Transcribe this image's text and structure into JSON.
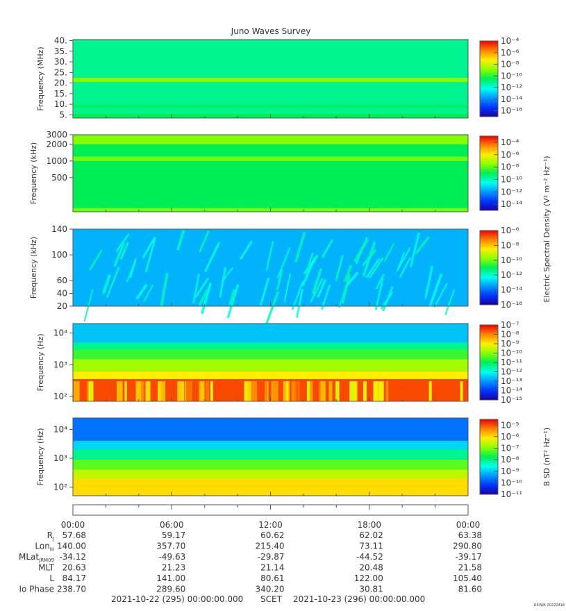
{
  "chart_data": {
    "type": "heatmap",
    "title": "Juno Waves Survey",
    "footer_left": "2021-10-22 (295) 00:00:00.000",
    "footer_center": "SCET",
    "footer_right": "2021-10-23 (296) 00:00:00.000",
    "watermark": "UIOWA 20220418",
    "colorbar_label_upper": "Electric Spectral Density (V² m⁻² Hz⁻¹)",
    "colorbar_label_lower": "B SD (nT² Hz⁻¹)",
    "panels": [
      {
        "ylabel": "Frequency (MHz)",
        "yscale": "linear",
        "ylim": [
          3.5,
          40.5
        ],
        "yticks": [
          {
            "v": 40,
            "t": "40."
          },
          {
            "v": 35,
            "t": "35."
          },
          {
            "v": 30,
            "t": "30."
          },
          {
            "v": 25,
            "t": "25."
          },
          {
            "v": 20,
            "t": "20."
          },
          {
            "v": 15,
            "t": "15."
          },
          {
            "v": 10,
            "t": "10."
          },
          {
            "v": 5,
            "t": "5."
          }
        ],
        "colorbar_ticks": [
          {
            "v": -4,
            "t": "10⁻⁴"
          },
          {
            "v": -6,
            "t": "10⁻⁶"
          },
          {
            "v": -8,
            "t": "10⁻⁸"
          },
          {
            "v": -10,
            "t": "10⁻¹⁰"
          },
          {
            "v": -12,
            "t": "10⁻¹²"
          },
          {
            "v": -14,
            "t": "10⁻¹⁴"
          },
          {
            "v": -16,
            "t": "10⁻¹⁶"
          }
        ],
        "colorbar_range": [
          -17,
          -4
        ],
        "background_level": 0.45,
        "bands": [
          {
            "f_from": 3.5,
            "f_to": 5.5,
            "level": 0.5
          },
          {
            "f_from": 20.5,
            "f_to": 22.5,
            "level": 0.62
          },
          {
            "f_from": 8.5,
            "f_to": 9.5,
            "level": 0.5
          }
        ]
      },
      {
        "ylabel": "Frequency (kHz)",
        "yscale": "log",
        "ylim": [
          120,
          3000
        ],
        "yticks": [
          {
            "v": 3000,
            "t": "3000"
          },
          {
            "v": 2000,
            "t": "2000"
          },
          {
            "v": 1000,
            "t": "1000"
          },
          {
            "v": 500,
            "t": "500"
          }
        ],
        "colorbar_ticks": [
          {
            "v": -4,
            "t": "10⁻⁴"
          },
          {
            "v": -6,
            "t": "10⁻⁶"
          },
          {
            "v": -8,
            "t": "10⁻⁸"
          },
          {
            "v": -10,
            "t": "10⁻¹⁰"
          },
          {
            "v": -12,
            "t": "10⁻¹²"
          },
          {
            "v": -14,
            "t": "10⁻¹⁴"
          }
        ],
        "colorbar_range": [
          -15,
          -3
        ],
        "background_level": 0.5,
        "bands": [
          {
            "f_from": 2000,
            "f_to": 2900,
            "level": 0.62
          },
          {
            "f_from": 1000,
            "f_to": 1200,
            "level": 0.6
          },
          {
            "f_from": 120,
            "f_to": 140,
            "level": 0.6
          }
        ]
      },
      {
        "ylabel": "Frequency (kHz)",
        "yscale": "linear",
        "ylim": [
          20,
          140
        ],
        "yticks": [
          {
            "v": 140,
            "t": "140"
          },
          {
            "v": 100,
            "t": "100"
          },
          {
            "v": 60,
            "t": "60"
          },
          {
            "v": 40,
            "t": "40"
          },
          {
            "v": 20,
            "t": "20"
          }
        ],
        "colorbar_ticks": [
          {
            "v": -6,
            "t": "10⁻⁶"
          },
          {
            "v": -8,
            "t": "10⁻⁸"
          },
          {
            "v": -10,
            "t": "10⁻¹⁰"
          },
          {
            "v": -12,
            "t": "10⁻¹²"
          },
          {
            "v": -14,
            "t": "10⁻¹⁴"
          },
          {
            "v": -16,
            "t": "10⁻¹⁶"
          }
        ],
        "colorbar_range": [
          -16,
          -6
        ],
        "background_level": 0.28,
        "bands": []
      },
      {
        "ylabel": "Frequency (Hz)",
        "yscale": "log",
        "ylim": [
          70,
          20000
        ],
        "yticks": [
          {
            "v": 10000,
            "t": "10⁴"
          },
          {
            "v": 1000,
            "t": "10³"
          },
          {
            "v": 100,
            "t": "10²"
          }
        ],
        "colorbar_ticks": [
          {
            "v": -7,
            "t": "10⁻⁷"
          },
          {
            "v": -8,
            "t": "10⁻⁸"
          },
          {
            "v": -9,
            "t": "10⁻⁹"
          },
          {
            "v": -10,
            "t": "10⁻¹⁰"
          },
          {
            "v": -11,
            "t": "10⁻¹¹"
          },
          {
            "v": -12,
            "t": "10⁻¹²"
          },
          {
            "v": -13,
            "t": "10⁻¹³"
          },
          {
            "v": -14,
            "t": "10⁻¹⁴"
          },
          {
            "v": -15,
            "t": "10⁻¹⁵"
          }
        ],
        "colorbar_range": [
          -15,
          -7
        ],
        "background_level": 0.3,
        "bands": [
          {
            "f_from": 3000,
            "f_to": 5000,
            "level": 0.45
          },
          {
            "f_from": 1500,
            "f_to": 3000,
            "level": 0.55
          },
          {
            "f_from": 600,
            "f_to": 1500,
            "level": 0.65
          },
          {
            "f_from": 350,
            "f_to": 600,
            "level": 0.75
          },
          {
            "f_from": 70,
            "f_to": 350,
            "level": 0.93
          }
        ]
      },
      {
        "ylabel": "Frequency (Hz)",
        "yscale": "log",
        "ylim": [
          50,
          25000
        ],
        "yticks": [
          {
            "v": 10000,
            "t": "10⁴"
          },
          {
            "v": 1000,
            "t": "10³"
          },
          {
            "v": 100,
            "t": "10²"
          }
        ],
        "colorbar_ticks": [
          {
            "v": -5,
            "t": "10⁻⁵"
          },
          {
            "v": -6,
            "t": "10⁻⁶"
          },
          {
            "v": -7,
            "t": "10⁻⁷"
          },
          {
            "v": -8,
            "t": "10⁻⁸"
          },
          {
            "v": -9,
            "t": "10⁻⁹"
          },
          {
            "v": -10,
            "t": "10⁻¹⁰"
          },
          {
            "v": -11,
            "t": "10⁻¹¹"
          }
        ],
        "colorbar_range": [
          -11,
          -4.5
        ],
        "background_level": 0.18,
        "bands": [
          {
            "f_from": 4000,
            "f_to": 25000,
            "level": 0.2
          },
          {
            "f_from": 2000,
            "f_to": 4000,
            "level": 0.32
          },
          {
            "f_from": 900,
            "f_to": 2000,
            "level": 0.45
          },
          {
            "f_from": 400,
            "f_to": 900,
            "level": 0.58
          },
          {
            "f_from": 200,
            "f_to": 400,
            "level": 0.68
          },
          {
            "f_from": 50,
            "f_to": 200,
            "level": 0.77
          }
        ]
      }
    ],
    "x_ticks": [
      "00:00",
      "06:00",
      "12:00",
      "18:00",
      "00:00"
    ],
    "ephemeris": [
      {
        "label": "R",
        "sub": "J",
        "values": [
          "57.68",
          "59.17",
          "60.62",
          "62.02",
          "63.38"
        ]
      },
      {
        "label": "Lon",
        "sub": "III",
        "values": [
          "140.00",
          "357.70",
          "215.40",
          "73.11",
          "290.80"
        ]
      },
      {
        "label": "MLat",
        "sub": "JRM09",
        "values": [
          "-34.12",
          "-49.63",
          "-29.87",
          "-44.52",
          "-39.17"
        ]
      },
      {
        "label": "MLT",
        "sub": "",
        "values": [
          "20.63",
          "21.23",
          "21.14",
          "20.48",
          "21.58"
        ]
      },
      {
        "label": "L",
        "sub": "",
        "values": [
          "84.17",
          "141.00",
          "80.61",
          "122.00",
          "105.40"
        ]
      },
      {
        "label": "Io Phase",
        "sub": "",
        "values": [
          "238.70",
          "289.60",
          "340.20",
          "30.81",
          "81.60"
        ]
      }
    ]
  }
}
